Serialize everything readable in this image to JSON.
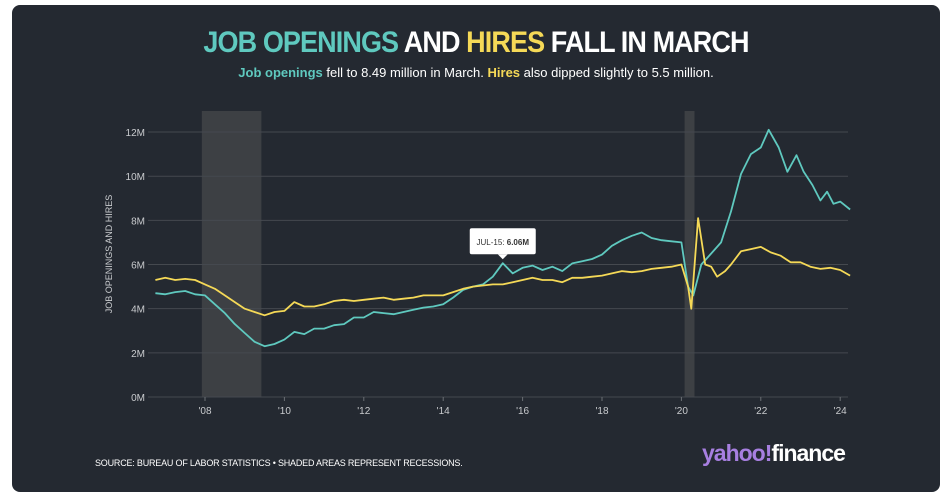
{
  "title": {
    "part1": "JOB OPENINGS",
    "part2": " AND ",
    "part3": "HIRES",
    "part4": " FALL IN MARCH"
  },
  "subtitle": {
    "part1": "Job openings",
    "part2": " fell to 8.49 million in March. ",
    "part3": "Hires",
    "part4": " also dipped slightly to 5.5 million."
  },
  "footer": {
    "source": "SOURCE: BUREAU OF LABOR STATISTICS • SHADED AREAS REPRESENT RECESSIONS.",
    "logo_part1": "yahoo",
    "logo_part2": "!",
    "logo_part3": "finance"
  },
  "colors": {
    "openings": "#5fc9bf",
    "hires": "#f5d957",
    "background": "#242931",
    "recession": "#3d4044"
  },
  "chart_data": {
    "type": "line",
    "title": "JOB OPENINGS AND HIRES FALL IN MARCH",
    "ylabel": "JOB OPENINGS AND HIRES",
    "ylim": [
      0,
      12.5
    ],
    "yticks": [
      {
        "v": 0,
        "label": "0M"
      },
      {
        "v": 2,
        "label": "2M"
      },
      {
        "v": 4,
        "label": "4M"
      },
      {
        "v": 6,
        "label": "6M"
      },
      {
        "v": 8,
        "label": "8M"
      },
      {
        "v": 10,
        "label": "10M"
      },
      {
        "v": 12,
        "label": "12M"
      }
    ],
    "xticks": [
      {
        "v": 2008,
        "label": "'08"
      },
      {
        "v": 2010,
        "label": "'10"
      },
      {
        "v": 2012,
        "label": "'12"
      },
      {
        "v": 2014,
        "label": "'14"
      },
      {
        "v": 2016,
        "label": "'16"
      },
      {
        "v": 2018,
        "label": "'18"
      },
      {
        "v": 2020,
        "label": "'20"
      },
      {
        "v": 2022,
        "label": "'22"
      },
      {
        "v": 2024,
        "label": "'24"
      }
    ],
    "xlim": [
      2006.7,
      2024.25
    ],
    "grid": true,
    "recessions": [
      [
        2007.92,
        2009.42
      ],
      [
        2020.08,
        2020.33
      ]
    ],
    "tooltip": {
      "label": "JUL-15:",
      "value": "6.06M",
      "x": 2015.5,
      "y": 6.06
    },
    "series": [
      {
        "name": "Job openings",
        "points": [
          [
            2006.75,
            4.7
          ],
          [
            2007,
            4.65
          ],
          [
            2007.25,
            4.75
          ],
          [
            2007.5,
            4.8
          ],
          [
            2007.75,
            4.65
          ],
          [
            2008,
            4.6
          ],
          [
            2008.25,
            4.2
          ],
          [
            2008.5,
            3.8
          ],
          [
            2008.75,
            3.3
          ],
          [
            2009,
            2.9
          ],
          [
            2009.25,
            2.5
          ],
          [
            2009.5,
            2.3
          ],
          [
            2009.75,
            2.4
          ],
          [
            2010,
            2.6
          ],
          [
            2010.25,
            2.95
          ],
          [
            2010.5,
            2.85
          ],
          [
            2010.75,
            3.1
          ],
          [
            2011,
            3.1
          ],
          [
            2011.25,
            3.25
          ],
          [
            2011.5,
            3.3
          ],
          [
            2011.75,
            3.6
          ],
          [
            2012,
            3.6
          ],
          [
            2012.25,
            3.85
          ],
          [
            2012.5,
            3.8
          ],
          [
            2012.75,
            3.75
          ],
          [
            2013,
            3.85
          ],
          [
            2013.25,
            3.95
          ],
          [
            2013.5,
            4.05
          ],
          [
            2013.75,
            4.1
          ],
          [
            2014,
            4.2
          ],
          [
            2014.25,
            4.5
          ],
          [
            2014.5,
            4.85
          ],
          [
            2014.75,
            5.0
          ],
          [
            2015,
            5.1
          ],
          [
            2015.25,
            5.45
          ],
          [
            2015.5,
            6.06
          ],
          [
            2015.75,
            5.6
          ],
          [
            2016,
            5.85
          ],
          [
            2016.25,
            5.95
          ],
          [
            2016.5,
            5.75
          ],
          [
            2016.75,
            5.9
          ],
          [
            2017,
            5.7
          ],
          [
            2017.25,
            6.05
          ],
          [
            2017.5,
            6.15
          ],
          [
            2017.75,
            6.25
          ],
          [
            2018,
            6.45
          ],
          [
            2018.25,
            6.85
          ],
          [
            2018.5,
            7.1
          ],
          [
            2018.75,
            7.3
          ],
          [
            2019,
            7.45
          ],
          [
            2019.25,
            7.2
          ],
          [
            2019.5,
            7.1
          ],
          [
            2019.75,
            7.05
          ],
          [
            2020,
            7.0
          ],
          [
            2020.17,
            5.0
          ],
          [
            2020.3,
            4.6
          ],
          [
            2020.5,
            6.0
          ],
          [
            2020.75,
            6.5
          ],
          [
            2021,
            7.0
          ],
          [
            2021.25,
            8.4
          ],
          [
            2021.5,
            10.1
          ],
          [
            2021.75,
            11.0
          ],
          [
            2022,
            11.3
          ],
          [
            2022.2,
            12.1
          ],
          [
            2022.45,
            11.3
          ],
          [
            2022.67,
            10.2
          ],
          [
            2022.9,
            10.95
          ],
          [
            2023.08,
            10.2
          ],
          [
            2023.3,
            9.6
          ],
          [
            2023.5,
            8.9
          ],
          [
            2023.67,
            9.3
          ],
          [
            2023.83,
            8.75
          ],
          [
            2024,
            8.85
          ],
          [
            2024.25,
            8.49
          ]
        ]
      },
      {
        "name": "Hires",
        "points": [
          [
            2006.75,
            5.3
          ],
          [
            2007,
            5.4
          ],
          [
            2007.25,
            5.3
          ],
          [
            2007.5,
            5.35
          ],
          [
            2007.75,
            5.3
          ],
          [
            2008,
            5.1
          ],
          [
            2008.25,
            4.9
          ],
          [
            2008.5,
            4.6
          ],
          [
            2008.75,
            4.3
          ],
          [
            2009,
            4.0
          ],
          [
            2009.25,
            3.85
          ],
          [
            2009.5,
            3.7
          ],
          [
            2009.75,
            3.85
          ],
          [
            2010,
            3.9
          ],
          [
            2010.25,
            4.3
          ],
          [
            2010.5,
            4.1
          ],
          [
            2010.75,
            4.1
          ],
          [
            2011,
            4.2
          ],
          [
            2011.25,
            4.35
          ],
          [
            2011.5,
            4.4
          ],
          [
            2011.75,
            4.35
          ],
          [
            2012,
            4.4
          ],
          [
            2012.25,
            4.45
          ],
          [
            2012.5,
            4.5
          ],
          [
            2012.75,
            4.4
          ],
          [
            2013,
            4.45
          ],
          [
            2013.25,
            4.5
          ],
          [
            2013.5,
            4.6
          ],
          [
            2013.75,
            4.6
          ],
          [
            2014,
            4.6
          ],
          [
            2014.25,
            4.75
          ],
          [
            2014.5,
            4.9
          ],
          [
            2014.75,
            5.0
          ],
          [
            2015,
            5.05
          ],
          [
            2015.25,
            5.1
          ],
          [
            2015.5,
            5.1
          ],
          [
            2015.75,
            5.2
          ],
          [
            2016,
            5.3
          ],
          [
            2016.25,
            5.4
          ],
          [
            2016.5,
            5.3
          ],
          [
            2016.75,
            5.3
          ],
          [
            2017,
            5.2
          ],
          [
            2017.25,
            5.4
          ],
          [
            2017.5,
            5.4
          ],
          [
            2017.75,
            5.45
          ],
          [
            2018,
            5.5
          ],
          [
            2018.25,
            5.6
          ],
          [
            2018.5,
            5.7
          ],
          [
            2018.75,
            5.65
          ],
          [
            2019,
            5.7
          ],
          [
            2019.25,
            5.8
          ],
          [
            2019.5,
            5.85
          ],
          [
            2019.75,
            5.9
          ],
          [
            2020,
            6.0
          ],
          [
            2020.17,
            5.0
          ],
          [
            2020.25,
            4.0
          ],
          [
            2020.42,
            8.1
          ],
          [
            2020.6,
            6.0
          ],
          [
            2020.75,
            5.9
          ],
          [
            2020.9,
            5.45
          ],
          [
            2021.1,
            5.7
          ],
          [
            2021.25,
            6.0
          ],
          [
            2021.5,
            6.6
          ],
          [
            2021.75,
            6.7
          ],
          [
            2022,
            6.8
          ],
          [
            2022.25,
            6.55
          ],
          [
            2022.5,
            6.4
          ],
          [
            2022.75,
            6.1
          ],
          [
            2023,
            6.1
          ],
          [
            2023.25,
            5.9
          ],
          [
            2023.5,
            5.8
          ],
          [
            2023.75,
            5.85
          ],
          [
            2024,
            5.75
          ],
          [
            2024.25,
            5.5
          ]
        ]
      }
    ]
  }
}
